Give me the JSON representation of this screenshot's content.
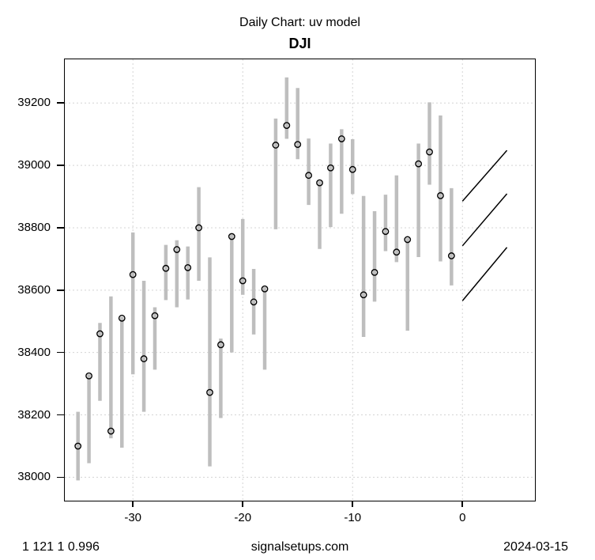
{
  "header": {
    "subtitle": "Daily Chart: uv model",
    "title": "DJI"
  },
  "footer": {
    "left": "1 121 1 0.996",
    "center": "signalsetups.com",
    "right": "2024-03-15"
  },
  "chart_data": {
    "type": "bar",
    "variant": "daily-high-low-range-bars-with-close-markers",
    "title": "DJI",
    "subtitle": "Daily Chart: uv model",
    "xlabel": "",
    "ylabel": "",
    "grid": "dotted",
    "legend": "none",
    "xlim": [
      -36.2,
      6.6
    ],
    "ylim": [
      37925,
      39340
    ],
    "x_ticks": [
      -30,
      -20,
      -10,
      0
    ],
    "y_ticks": [
      38000,
      38200,
      38400,
      38600,
      38800,
      39000,
      39200
    ],
    "bars": [
      {
        "x": -35,
        "low": 37990,
        "high": 38210,
        "close": 38100
      },
      {
        "x": -34,
        "low": 38045,
        "high": 38330,
        "close": 38325
      },
      {
        "x": -33,
        "low": 38245,
        "high": 38495,
        "close": 38460
      },
      {
        "x": -32,
        "low": 38125,
        "high": 38580,
        "close": 38148
      },
      {
        "x": -31,
        "low": 38095,
        "high": 38515,
        "close": 38510
      },
      {
        "x": -30,
        "low": 38330,
        "high": 38785,
        "close": 38650
      },
      {
        "x": -29,
        "low": 38210,
        "high": 38630,
        "close": 38380
      },
      {
        "x": -28,
        "low": 38345,
        "high": 38545,
        "close": 38518
      },
      {
        "x": -27,
        "low": 38568,
        "high": 38745,
        "close": 38670
      },
      {
        "x": -26,
        "low": 38545,
        "high": 38760,
        "close": 38730
      },
      {
        "x": -25,
        "low": 38570,
        "high": 38740,
        "close": 38672
      },
      {
        "x": -24,
        "low": 38630,
        "high": 38930,
        "close": 38800
      },
      {
        "x": -23,
        "low": 38035,
        "high": 38705,
        "close": 38272
      },
      {
        "x": -22,
        "low": 38190,
        "high": 38445,
        "close": 38425
      },
      {
        "x": -21,
        "low": 38400,
        "high": 38780,
        "close": 38772
      },
      {
        "x": -20,
        "low": 38585,
        "high": 38828,
        "close": 38630
      },
      {
        "x": -19,
        "low": 38458,
        "high": 38668,
        "close": 38562
      },
      {
        "x": -18,
        "low": 38345,
        "high": 38610,
        "close": 38604
      },
      {
        "x": -17,
        "low": 38795,
        "high": 39150,
        "close": 39065
      },
      {
        "x": -16,
        "low": 39085,
        "high": 39282,
        "close": 39128
      },
      {
        "x": -15,
        "low": 39020,
        "high": 39248,
        "close": 39067
      },
      {
        "x": -14,
        "low": 38873,
        "high": 39086,
        "close": 38968
      },
      {
        "x": -13,
        "low": 38732,
        "high": 38950,
        "close": 38944
      },
      {
        "x": -12,
        "low": 38802,
        "high": 39070,
        "close": 38992
      },
      {
        "x": -11,
        "low": 38845,
        "high": 39116,
        "close": 39085
      },
      {
        "x": -10,
        "low": 38908,
        "high": 39084,
        "close": 38987
      },
      {
        "x": -9,
        "low": 38450,
        "high": 38902,
        "close": 38585
      },
      {
        "x": -8,
        "low": 38563,
        "high": 38853,
        "close": 38657
      },
      {
        "x": -7,
        "low": 38725,
        "high": 38906,
        "close": 38788
      },
      {
        "x": -6,
        "low": 38690,
        "high": 38968,
        "close": 38722
      },
      {
        "x": -5,
        "low": 38470,
        "high": 38768,
        "close": 38762
      },
      {
        "x": -4,
        "low": 38706,
        "high": 39070,
        "close": 39005
      },
      {
        "x": -3,
        "low": 38938,
        "high": 39202,
        "close": 39043
      },
      {
        "x": -2,
        "low": 38692,
        "high": 39160,
        "close": 38903
      },
      {
        "x": -1,
        "low": 38615,
        "high": 38927,
        "close": 38710
      }
    ],
    "forecast_lines": [
      {
        "x": [
          0,
          4.05
        ],
        "y": [
          38885,
          39048
        ]
      },
      {
        "x": [
          0,
          4.05
        ],
        "y": [
          38742,
          38909
        ]
      },
      {
        "x": [
          0,
          4.05
        ],
        "y": [
          38566,
          38737
        ]
      }
    ],
    "colors": {
      "bar": "#BEBEBE",
      "close_marker": "#000000",
      "grid": "#D4D4D4",
      "forecast_line": "#000000",
      "axis": "#000000"
    }
  }
}
